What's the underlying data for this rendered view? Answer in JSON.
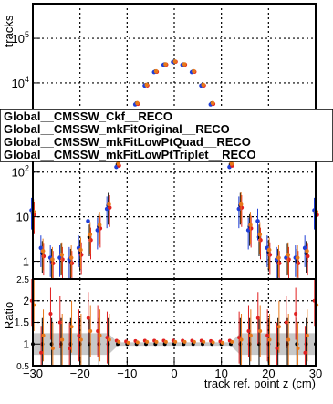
{
  "chart_data": [
    {
      "type": "scatter",
      "title": "",
      "xlabel": "",
      "ylabel": "tracks",
      "log_y": true,
      "xlim": [
        -30,
        30
      ],
      "ylim": [
        0.4,
        600000
      ],
      "grid": true,
      "x_ticks": [
        -30,
        -20,
        -10,
        0,
        10,
        20,
        30
      ],
      "y_ticks": [
        {
          "value": 1,
          "base": "1",
          "exp": ""
        },
        {
          "value": 10,
          "base": "10",
          "exp": ""
        },
        {
          "value": 100,
          "base": "10",
          "exp": "2"
        },
        {
          "value": 10000,
          "base": "10",
          "exp": "4"
        },
        {
          "value": 100000,
          "base": "10",
          "exp": "5"
        }
      ],
      "legend": {
        "placement": "overlapping-middle",
        "entries": [
          "Global__CMSSW_Ckf__RECO",
          "Global__CMSSW_mkFitOriginal__RECO",
          "Global__CMSSW_mkFitLowPtQuad__RECO",
          "Global__CMSSW_mkFitLowPtTriplet__RECO"
        ]
      },
      "x": [
        -30,
        -28,
        -26,
        -24,
        -22,
        -20,
        -18,
        -16,
        -14,
        -12,
        -10,
        -8,
        -6,
        -4,
        -2,
        0,
        2,
        4,
        6,
        8,
        10,
        12,
        14,
        16,
        18,
        20,
        22,
        24,
        26,
        28,
        30
      ],
      "series": [
        {
          "color": "#000000",
          "values": [
            12,
            1.5,
            1,
            1.3,
            1,
            1.6,
            3.5,
            6,
            18,
            150,
            1500,
            3500,
            9000,
            18000,
            26000,
            30000,
            26000,
            18000,
            9000,
            3500,
            1500,
            150,
            18,
            6,
            3.5,
            1.6,
            1,
            1.3,
            1,
            1.5,
            12
          ]
        },
        {
          "color": "#1f3fd6",
          "values": [
            14,
            2,
            1.2,
            1.2,
            1.1,
            2,
            8,
            5,
            15,
            130,
            1400,
            3300,
            8700,
            17500,
            25500,
            29500,
            25500,
            17500,
            8700,
            3300,
            1400,
            130,
            15,
            5,
            8,
            2,
            1.1,
            1.2,
            1.2,
            2,
            14
          ]
        },
        {
          "color": "#e02020",
          "values": [
            11,
            1.3,
            0.9,
            1.1,
            0.9,
            1.4,
            3,
            5.5,
            16,
            140,
            1450,
            3400,
            8800,
            17800,
            25800,
            29800,
            25800,
            17800,
            8800,
            3400,
            1450,
            140,
            16,
            5.5,
            3,
            1.4,
            0.9,
            1.1,
            0.9,
            1.3,
            11
          ]
        },
        {
          "color": "#e8781a",
          "values": [
            13,
            1.7,
            1.1,
            1.4,
            1.2,
            1.8,
            4,
            6.5,
            19,
            155,
            1550,
            3550,
            9100,
            18200,
            26200,
            30200,
            26200,
            18200,
            9100,
            3550,
            1550,
            155,
            19,
            6.5,
            4,
            1.8,
            1.2,
            1.4,
            1.2,
            1.7,
            13
          ]
        }
      ]
    },
    {
      "type": "scatter",
      "title": "",
      "xlabel": "track ref. point z (cm)",
      "ylabel": "Ratio",
      "xlim": [
        -30,
        30
      ],
      "ylim": [
        0.5,
        2.5
      ],
      "grid": true,
      "x_ticks": [
        -30,
        -20,
        -10,
        0,
        10,
        20,
        30
      ],
      "y_ticks": [
        0.5,
        1,
        1.5,
        2,
        2.5
      ],
      "x": [
        -30,
        -28,
        -26,
        -24,
        -22,
        -20,
        -18,
        -16,
        -14,
        -12,
        -10,
        -8,
        -6,
        -4,
        -2,
        0,
        2,
        4,
        6,
        8,
        10,
        12,
        14,
        16,
        18,
        20,
        22,
        24,
        26,
        28,
        30
      ],
      "series": [
        {
          "color": "#000000",
          "values": [
            1.0,
            1.0,
            1.0,
            1.0,
            1.0,
            1.0,
            1.0,
            1.0,
            1.0,
            1.0,
            1.0,
            1.0,
            1.0,
            1.0,
            1.0,
            1.0,
            1.0,
            1.0,
            1.0,
            1.0,
            1.0,
            1.0,
            1.0,
            1.0,
            1.0,
            1.0,
            1.0,
            1.0,
            1.0,
            1.0,
            1.0
          ]
        },
        {
          "color": "#e02020",
          "values": [
            2.0,
            0.8,
            1.7,
            1.5,
            0.9,
            1.2,
            1.6,
            1.3,
            1.15,
            1.08,
            1.06,
            1.07,
            1.08,
            1.08,
            1.08,
            1.08,
            1.08,
            1.08,
            1.08,
            1.07,
            1.06,
            1.08,
            1.15,
            1.3,
            1.6,
            1.2,
            0.9,
            1.5,
            1.7,
            0.8,
            2.0
          ]
        },
        {
          "color": "#e8781a",
          "values": [
            1.9,
            1.2,
            0.9,
            1.1,
            1.4,
            1.1,
            1.3,
            1.2,
            1.1,
            1.05,
            1.03,
            1.04,
            1.05,
            1.05,
            1.05,
            1.05,
            1.05,
            1.05,
            1.05,
            1.04,
            1.03,
            1.05,
            1.1,
            1.2,
            1.3,
            1.1,
            1.4,
            1.1,
            0.9,
            1.2,
            1.9
          ]
        }
      ]
    }
  ]
}
